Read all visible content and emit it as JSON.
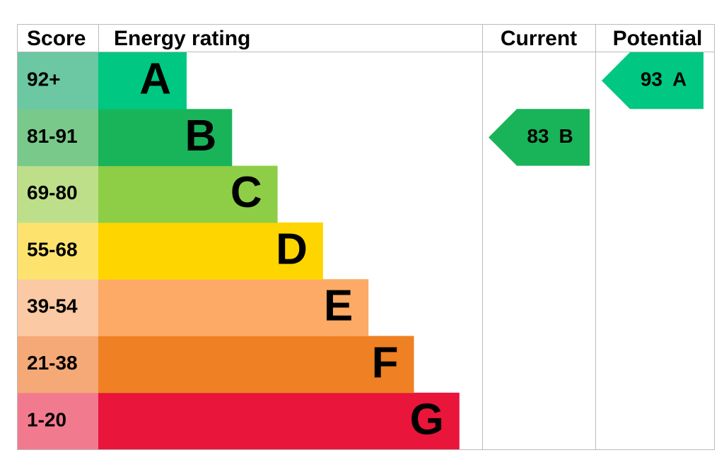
{
  "headers": {
    "score": "Score",
    "rating": "Energy rating",
    "current": "Current",
    "potential": "Potential"
  },
  "rows": [
    {
      "score": "92+",
      "letter": "A",
      "color": "#00c781",
      "score_color": "#6cc7a3"
    },
    {
      "score": "81-91",
      "letter": "B",
      "color": "#19b459",
      "score_color": "#79c98a"
    },
    {
      "score": "69-80",
      "letter": "C",
      "color": "#8dce46",
      "score_color": "#bddf8a"
    },
    {
      "score": "55-68",
      "letter": "D",
      "color": "#ffd500",
      "score_color": "#fde36e"
    },
    {
      "score": "39-54",
      "letter": "E",
      "color": "#fcaa65",
      "score_color": "#fbc9a3"
    },
    {
      "score": "21-38",
      "letter": "F",
      "color": "#ef8023",
      "score_color": "#f4a977"
    },
    {
      "score": "1-20",
      "letter": "G",
      "color": "#e9153b",
      "score_color": "#f27a8f"
    }
  ],
  "current": {
    "value": 83,
    "letter": "B"
  },
  "potential": {
    "value": 93,
    "letter": "A"
  }
}
